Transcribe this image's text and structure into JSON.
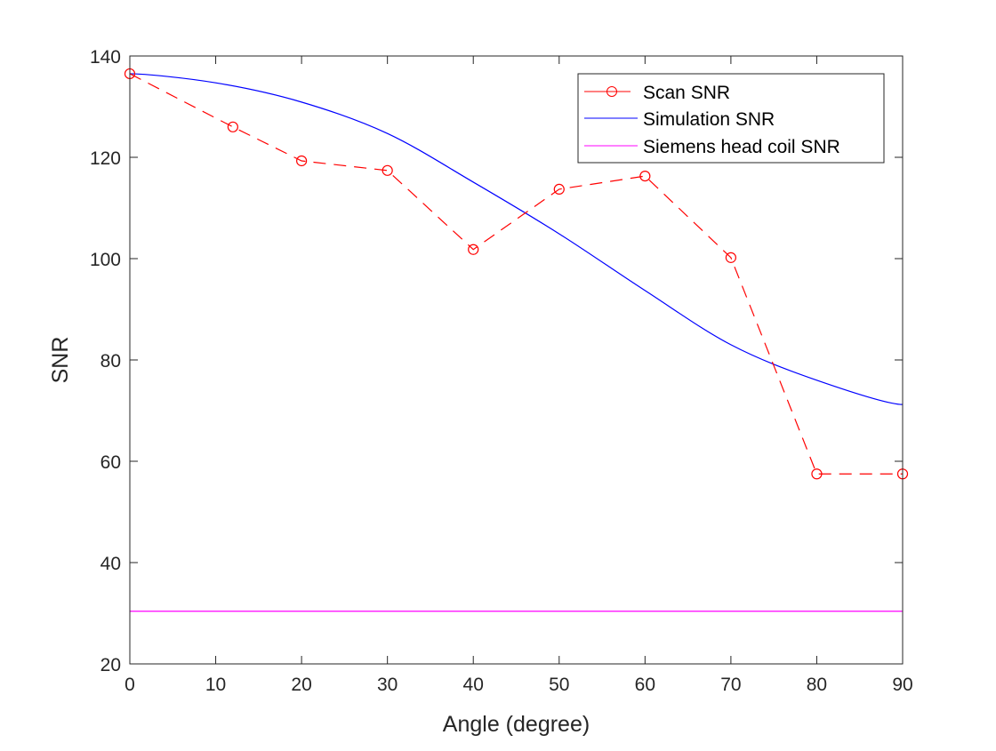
{
  "chart_data": {
    "type": "line",
    "title": "",
    "xlabel": "Angle (degree)",
    "ylabel": "SNR",
    "xlim": [
      0,
      90
    ],
    "ylim": [
      20,
      140
    ],
    "xticks": [
      0,
      10,
      20,
      30,
      40,
      50,
      60,
      70,
      80,
      90
    ],
    "yticks": [
      20,
      40,
      60,
      80,
      100,
      120,
      140
    ],
    "grid": false,
    "legend_position": "top-right",
    "series": [
      {
        "name": "Scan SNR",
        "color": "#ff0000",
        "style": "dashed",
        "marker": "circle",
        "x": [
          0,
          12,
          20,
          30,
          40,
          50,
          60,
          70,
          80,
          90
        ],
        "y": [
          136.5,
          126.0,
          119.3,
          117.4,
          101.8,
          113.7,
          116.3,
          100.2,
          57.5,
          57.5
        ]
      },
      {
        "name": "Simulation SNR",
        "color": "#0000ff",
        "style": "solid",
        "marker": "none",
        "x": [
          0,
          10,
          20,
          30,
          40,
          50,
          60,
          70,
          80,
          90
        ],
        "y": [
          136.5,
          134.7,
          130.9,
          124.7,
          115.1,
          104.9,
          93.7,
          83.0,
          76.0,
          71.2
        ]
      },
      {
        "name": "Siemens head coil SNR",
        "color": "#ff00ff",
        "style": "solid",
        "marker": "none",
        "x": [
          0,
          90
        ],
        "y": [
          30.4,
          30.4
        ]
      }
    ]
  }
}
